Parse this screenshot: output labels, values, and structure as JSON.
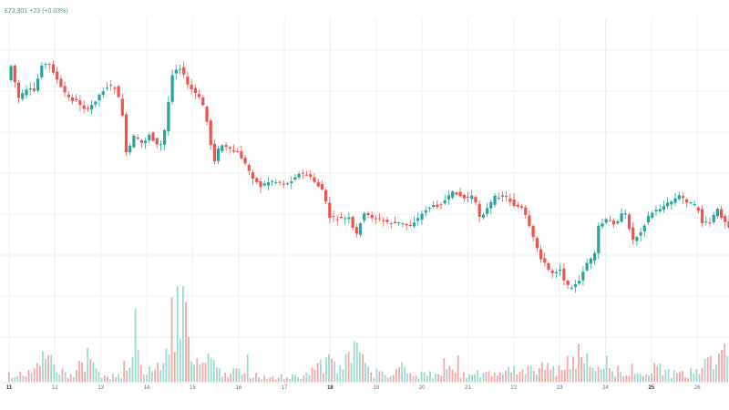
{
  "header": {
    "price_readout": "£73,301  +23 (+0.03%)"
  },
  "colors": {
    "up": "#26a69a",
    "down": "#ef5350",
    "up_volume": "#9fd9d2",
    "down_volume": "#f5a8a6",
    "grid": "#eef0f3",
    "axis_text": "#6b6f7a"
  },
  "chart_data": {
    "type": "candlestick",
    "x_ticks": [
      {
        "label": "11",
        "major": true
      },
      {
        "label": "12",
        "major": false
      },
      {
        "label": "13",
        "major": false
      },
      {
        "label": "14",
        "major": false
      },
      {
        "label": "15",
        "major": false
      },
      {
        "label": "16",
        "major": false
      },
      {
        "label": "17",
        "major": false
      },
      {
        "label": "18",
        "major": true
      },
      {
        "label": "19",
        "major": false
      },
      {
        "label": "20",
        "major": false
      },
      {
        "label": "21",
        "major": false
      },
      {
        "label": "22",
        "major": false
      },
      {
        "label": "23",
        "major": false
      },
      {
        "label": "24",
        "major": false
      },
      {
        "label": "25",
        "major": true
      },
      {
        "label": "26",
        "major": false
      }
    ],
    "price_path": [
      [
        11.0,
        88
      ],
      [
        11.05,
        65
      ],
      [
        11.25,
        108
      ],
      [
        11.45,
        98
      ],
      [
        11.6,
        100
      ],
      [
        11.75,
        70
      ],
      [
        11.95,
        72
      ],
      [
        12.15,
        95
      ],
      [
        12.35,
        108
      ],
      [
        12.55,
        112
      ],
      [
        12.75,
        122
      ],
      [
        12.95,
        108
      ],
      [
        13.15,
        95
      ],
      [
        13.35,
        96
      ],
      [
        13.5,
        120
      ],
      [
        13.6,
        172
      ],
      [
        13.75,
        150
      ],
      [
        13.95,
        158
      ],
      [
        14.1,
        147
      ],
      [
        14.3,
        162
      ],
      [
        14.4,
        155
      ],
      [
        14.6,
        80
      ],
      [
        14.75,
        72
      ],
      [
        14.95,
        95
      ],
      [
        15.15,
        105
      ],
      [
        15.3,
        118
      ],
      [
        15.5,
        178
      ],
      [
        15.65,
        158
      ],
      [
        15.85,
        165
      ],
      [
        16.05,
        168
      ],
      [
        16.3,
        190
      ],
      [
        16.5,
        205
      ],
      [
        16.75,
        198
      ],
      [
        16.9,
        200
      ],
      [
        17.1,
        202
      ],
      [
        17.3,
        192
      ],
      [
        17.5,
        190
      ],
      [
        17.7,
        200
      ],
      [
        17.9,
        210
      ],
      [
        18.0,
        238
      ],
      [
        18.2,
        240
      ],
      [
        18.45,
        240
      ],
      [
        18.6,
        260
      ],
      [
        18.75,
        235
      ],
      [
        18.95,
        238
      ],
      [
        19.15,
        242
      ],
      [
        19.35,
        245
      ],
      [
        19.55,
        245
      ],
      [
        19.75,
        248
      ],
      [
        19.95,
        240
      ],
      [
        20.15,
        228
      ],
      [
        20.35,
        226
      ],
      [
        20.55,
        220
      ],
      [
        20.75,
        210
      ],
      [
        20.95,
        218
      ],
      [
        21.15,
        215
      ],
      [
        21.3,
        238
      ],
      [
        21.45,
        230
      ],
      [
        21.65,
        215
      ],
      [
        21.85,
        215
      ],
      [
        22.05,
        225
      ],
      [
        22.25,
        230
      ],
      [
        22.45,
        260
      ],
      [
        22.65,
        285
      ],
      [
        22.85,
        300
      ],
      [
        23.05,
        295
      ],
      [
        23.2,
        315
      ],
      [
        23.45,
        312
      ],
      [
        23.6,
        290
      ],
      [
        23.8,
        282
      ],
      [
        23.85,
        250
      ],
      [
        24.05,
        242
      ],
      [
        24.25,
        245
      ],
      [
        24.45,
        232
      ],
      [
        24.65,
        265
      ],
      [
        24.85,
        250
      ],
      [
        25.0,
        235
      ],
      [
        25.25,
        228
      ],
      [
        25.45,
        222
      ],
      [
        25.65,
        215
      ],
      [
        25.85,
        222
      ],
      [
        26.05,
        228
      ],
      [
        26.15,
        245
      ],
      [
        26.35,
        245
      ],
      [
        26.45,
        228
      ],
      [
        26.6,
        240
      ],
      [
        26.8,
        252
      ],
      [
        26.9,
        278
      ]
    ],
    "volume": [
      [
        11.0,
        5
      ],
      [
        11.3,
        4
      ],
      [
        11.6,
        8
      ],
      [
        11.8,
        18
      ],
      [
        11.95,
        10
      ],
      [
        12.2,
        5
      ],
      [
        12.5,
        7
      ],
      [
        12.7,
        14
      ],
      [
        12.85,
        8
      ],
      [
        13.05,
        4
      ],
      [
        13.4,
        3
      ],
      [
        13.6,
        14
      ],
      [
        13.75,
        35
      ],
      [
        13.9,
        8
      ],
      [
        14.2,
        6
      ],
      [
        14.5,
        30
      ],
      [
        14.7,
        55
      ],
      [
        14.85,
        40
      ],
      [
        15.05,
        6
      ],
      [
        15.3,
        25
      ],
      [
        15.5,
        8
      ],
      [
        15.8,
        6
      ],
      [
        16.2,
        5
      ],
      [
        16.5,
        4
      ],
      [
        17.0,
        3
      ],
      [
        17.5,
        5
      ],
      [
        18.0,
        12
      ],
      [
        18.3,
        10
      ],
      [
        18.55,
        20
      ],
      [
        18.8,
        7
      ],
      [
        19.05,
        5
      ],
      [
        19.3,
        6
      ],
      [
        19.6,
        10
      ],
      [
        19.9,
        4
      ],
      [
        20.2,
        5
      ],
      [
        20.55,
        10
      ],
      [
        20.8,
        5
      ],
      [
        21.1,
        4
      ],
      [
        21.4,
        6
      ],
      [
        21.7,
        4
      ],
      [
        22.0,
        9
      ],
      [
        22.3,
        7
      ],
      [
        22.6,
        11
      ],
      [
        22.85,
        8
      ],
      [
        23.1,
        6
      ],
      [
        23.4,
        16
      ],
      [
        23.7,
        12
      ],
      [
        24.0,
        13
      ],
      [
        24.3,
        6
      ],
      [
        24.7,
        4
      ],
      [
        25.0,
        8
      ],
      [
        25.3,
        7
      ],
      [
        25.6,
        4
      ],
      [
        25.9,
        6
      ],
      [
        26.2,
        10
      ],
      [
        26.5,
        14
      ],
      [
        26.8,
        25
      ],
      [
        26.9,
        30
      ]
    ]
  }
}
